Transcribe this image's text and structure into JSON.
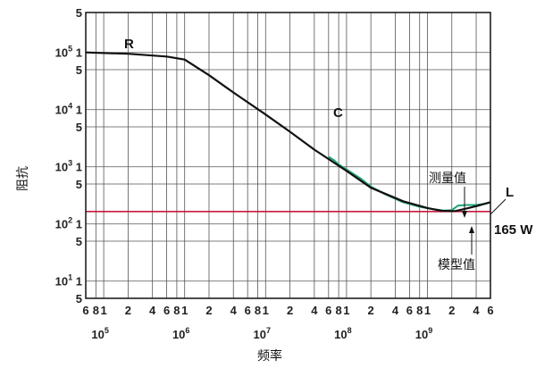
{
  "chart_data": {
    "type": "line",
    "xscale": "log",
    "yscale": "log",
    "xlim": [
      60000,
      6000000000
    ],
    "ylim": [
      5,
      500000
    ],
    "xlabel": "频率",
    "ylabel": "阻抗",
    "grid": true,
    "x_ticks": [
      {
        "x": 60000,
        "label": "6",
        "sup": ""
      },
      {
        "x": 80000,
        "label": "8",
        "sup": ""
      },
      {
        "x": 100000,
        "label": "1",
        "sup": "",
        "decade": "10",
        "exp": "5"
      },
      {
        "x": 200000,
        "label": "2",
        "sup": ""
      },
      {
        "x": 400000,
        "label": "4",
        "sup": ""
      },
      {
        "x": 600000,
        "label": "6",
        "sup": ""
      },
      {
        "x": 800000,
        "label": "8",
        "sup": ""
      },
      {
        "x": 1000000,
        "label": "1",
        "sup": "",
        "decade": "10",
        "exp": "6"
      },
      {
        "x": 2000000,
        "label": "2",
        "sup": ""
      },
      {
        "x": 4000000,
        "label": "4",
        "sup": ""
      },
      {
        "x": 6000000,
        "label": "6",
        "sup": ""
      },
      {
        "x": 8000000,
        "label": "8",
        "sup": ""
      },
      {
        "x": 10000000,
        "label": "1",
        "sup": "",
        "decade": "10",
        "exp": "7"
      },
      {
        "x": 20000000,
        "label": "2",
        "sup": ""
      },
      {
        "x": 40000000,
        "label": "4",
        "sup": ""
      },
      {
        "x": 60000000,
        "label": "6",
        "sup": ""
      },
      {
        "x": 80000000,
        "label": "8",
        "sup": ""
      },
      {
        "x": 100000000,
        "label": "1",
        "sup": "",
        "decade": "10",
        "exp": "8"
      },
      {
        "x": 200000000,
        "label": "2",
        "sup": ""
      },
      {
        "x": 400000000,
        "label": "4",
        "sup": ""
      },
      {
        "x": 600000000,
        "label": "6",
        "sup": ""
      },
      {
        "x": 800000000,
        "label": "8",
        "sup": ""
      },
      {
        "x": 1000000000,
        "label": "1",
        "sup": "",
        "decade": "10",
        "exp": "9"
      },
      {
        "x": 2000000000,
        "label": "2",
        "sup": ""
      },
      {
        "x": 4000000000,
        "label": "4",
        "sup": ""
      },
      {
        "x": 6000000000,
        "label": "6",
        "sup": ""
      }
    ],
    "y_ticks": [
      {
        "y": 500000,
        "label": "5",
        "prefix": "",
        "exp": ""
      },
      {
        "y": 100000,
        "label": "1",
        "prefix": "10",
        "exp": "5"
      },
      {
        "y": 50000,
        "label": "5",
        "prefix": "",
        "exp": ""
      },
      {
        "y": 10000,
        "label": "1",
        "prefix": "10",
        "exp": "4"
      },
      {
        "y": 5000,
        "label": "5",
        "prefix": "",
        "exp": ""
      },
      {
        "y": 1000,
        "label": "1",
        "prefix": "10",
        "exp": "3"
      },
      {
        "y": 500,
        "label": "5",
        "prefix": "",
        "exp": ""
      },
      {
        "y": 100,
        "label": "1",
        "prefix": "10",
        "exp": "2"
      },
      {
        "y": 50,
        "label": "5",
        "prefix": "",
        "exp": ""
      },
      {
        "y": 10,
        "label": "1",
        "prefix": "10",
        "exp": "1"
      },
      {
        "y": 5,
        "label": "5",
        "prefix": "",
        "exp": ""
      }
    ],
    "reference_line": {
      "y": 165,
      "label": "165 W",
      "color": "#c8193c"
    },
    "series": [
      {
        "name": "模型值",
        "color": "#111111",
        "points": [
          [
            60000,
            100000
          ],
          [
            200000,
            95000
          ],
          [
            600000,
            85000
          ],
          [
            1000000,
            75000
          ],
          [
            2000000,
            40000
          ],
          [
            4000000,
            20000
          ],
          [
            10000000,
            8200
          ],
          [
            20000000,
            4100
          ],
          [
            40000000,
            2000
          ],
          [
            100000000,
            850
          ],
          [
            200000000,
            430
          ],
          [
            500000000,
            250
          ],
          [
            1000000000,
            190
          ],
          [
            1500000000,
            170
          ],
          [
            2200000000,
            168
          ],
          [
            3000000000,
            185
          ],
          [
            4000000000,
            205
          ],
          [
            6000000000,
            240
          ]
        ]
      },
      {
        "name": "测量值",
        "color": "#1fa37a",
        "points": [
          [
            60000000,
            1500
          ],
          [
            70000000,
            1300
          ],
          [
            80000000,
            1100
          ],
          [
            100000000,
            900
          ],
          [
            150000000,
            620
          ],
          [
            200000000,
            450
          ],
          [
            300000000,
            330
          ],
          [
            500000000,
            240
          ],
          [
            800000000,
            200
          ],
          [
            1200000000,
            180
          ],
          [
            1600000000,
            172
          ],
          [
            2000000000,
            175
          ],
          [
            2400000000,
            210
          ],
          [
            3000000000,
            215
          ],
          [
            4000000000,
            215
          ],
          [
            5000000000,
            225
          ],
          [
            6000000000,
            240
          ]
        ]
      }
    ],
    "annotations": {
      "R": "R",
      "C": "C",
      "L": "L",
      "measured": "测量值",
      "model": "模型值"
    }
  }
}
